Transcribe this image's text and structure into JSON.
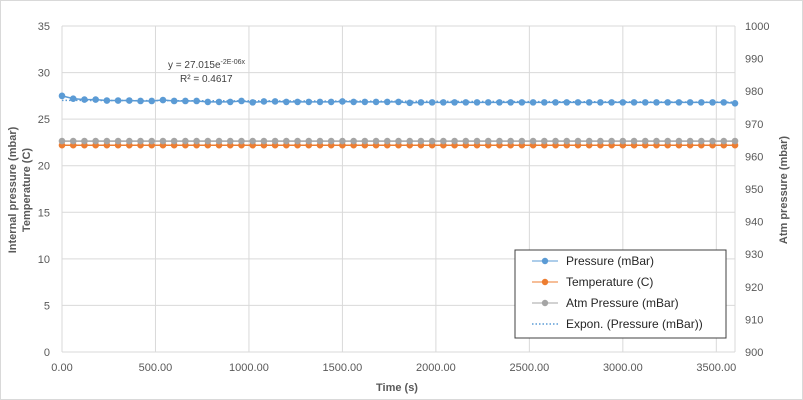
{
  "chart_data": {
    "type": "line",
    "xlabel": "Time (s)",
    "ylabel_left_lines": [
      "Internal pressure (mbar)",
      "Temperature (C)"
    ],
    "ylabel_right": "Atm pressure (mbar)",
    "xlim": [
      0,
      3600
    ],
    "ylim_left": [
      0,
      35
    ],
    "ylim_right": [
      900,
      1000
    ],
    "x_ticks": [
      "0.00",
      "500.00",
      "1000.00",
      "1500.00",
      "2000.00",
      "2500.00",
      "3000.00",
      "3500.00"
    ],
    "y_left_ticks": [
      "0",
      "5",
      "10",
      "15",
      "20",
      "25",
      "30",
      "35"
    ],
    "y_right_ticks": [
      "900",
      "910",
      "920",
      "930",
      "940",
      "950",
      "960",
      "970",
      "980",
      "990",
      "1000"
    ],
    "grid": "major gridlines on both axes",
    "x": [
      0,
      60,
      120,
      180,
      240,
      300,
      360,
      420,
      480,
      540,
      600,
      660,
      720,
      780,
      840,
      900,
      960,
      1020,
      1080,
      1140,
      1200,
      1260,
      1320,
      1380,
      1440,
      1500,
      1560,
      1620,
      1680,
      1740,
      1800,
      1860,
      1920,
      1980,
      2040,
      2100,
      2160,
      2220,
      2280,
      2340,
      2400,
      2460,
      2520,
      2580,
      2640,
      2700,
      2760,
      2820,
      2880,
      2940,
      3000,
      3060,
      3120,
      3180,
      3240,
      3300,
      3360,
      3420,
      3480,
      3540,
      3600
    ],
    "series": [
      {
        "name": "Pressure (mBar)",
        "axis": "left",
        "color": "#5b9bd5",
        "values": [
          27.5,
          27.2,
          27.1,
          27.1,
          27.0,
          27.0,
          27.0,
          26.95,
          26.95,
          27.05,
          26.95,
          26.95,
          26.95,
          26.85,
          26.85,
          26.85,
          26.95,
          26.8,
          26.9,
          26.9,
          26.85,
          26.85,
          26.85,
          26.85,
          26.85,
          26.9,
          26.85,
          26.85,
          26.85,
          26.85,
          26.85,
          26.75,
          26.8,
          26.8,
          26.8,
          26.8,
          26.8,
          26.8,
          26.8,
          26.8,
          26.8,
          26.8,
          26.8,
          26.8,
          26.8,
          26.8,
          26.8,
          26.8,
          26.8,
          26.8,
          26.8,
          26.8,
          26.8,
          26.8,
          26.8,
          26.8,
          26.8,
          26.8,
          26.8,
          26.8,
          26.7
        ]
      },
      {
        "name": "Temperature (C)",
        "axis": "left",
        "color": "#ed7d31",
        "values": [
          22.2,
          22.2,
          22.2,
          22.2,
          22.2,
          22.2,
          22.2,
          22.2,
          22.2,
          22.2,
          22.2,
          22.2,
          22.2,
          22.2,
          22.2,
          22.2,
          22.2,
          22.2,
          22.2,
          22.2,
          22.2,
          22.2,
          22.2,
          22.2,
          22.2,
          22.2,
          22.2,
          22.2,
          22.2,
          22.2,
          22.2,
          22.2,
          22.2,
          22.2,
          22.2,
          22.2,
          22.2,
          22.2,
          22.2,
          22.2,
          22.2,
          22.2,
          22.2,
          22.2,
          22.2,
          22.2,
          22.2,
          22.2,
          22.2,
          22.2,
          22.2,
          22.2,
          22.2,
          22.2,
          22.2,
          22.2,
          22.2,
          22.2,
          22.2,
          22.2,
          22.2
        ]
      },
      {
        "name": "Atm Pressure (mBar)",
        "axis": "right",
        "color": "#a5a5a5",
        "values": [
          964.7,
          964.7,
          964.7,
          964.7,
          964.7,
          964.7,
          964.7,
          964.7,
          964.7,
          964.7,
          964.7,
          964.7,
          964.7,
          964.7,
          964.7,
          964.7,
          964.7,
          964.7,
          964.7,
          964.7,
          964.7,
          964.7,
          964.7,
          964.7,
          964.7,
          964.7,
          964.7,
          964.7,
          964.7,
          964.7,
          964.7,
          964.7,
          964.7,
          964.7,
          964.7,
          964.7,
          964.7,
          964.7,
          964.7,
          964.7,
          964.7,
          964.7,
          964.7,
          964.7,
          964.7,
          964.7,
          964.7,
          964.7,
          964.7,
          964.7,
          964.7,
          964.7,
          964.7,
          964.7,
          964.7,
          964.7,
          964.7,
          964.7,
          964.7,
          964.7,
          964.7
        ]
      }
    ],
    "trendline": {
      "name": "Expon. (Pressure (mBar))",
      "of_series": "Pressure (mBar)",
      "a": 27.015,
      "b": -2e-06,
      "color": "#5b9bd5",
      "equation_prefix": "y = 27.015e",
      "equation_exponent": "-2E-06x",
      "r2_label": "R² = 0.4617"
    },
    "legend": {
      "position": "bottom-right",
      "entries": [
        "Pressure (mBar)",
        "Temperature (C)",
        "Atm Pressure (mBar)",
        "Expon. (Pressure (mBar))"
      ]
    }
  }
}
